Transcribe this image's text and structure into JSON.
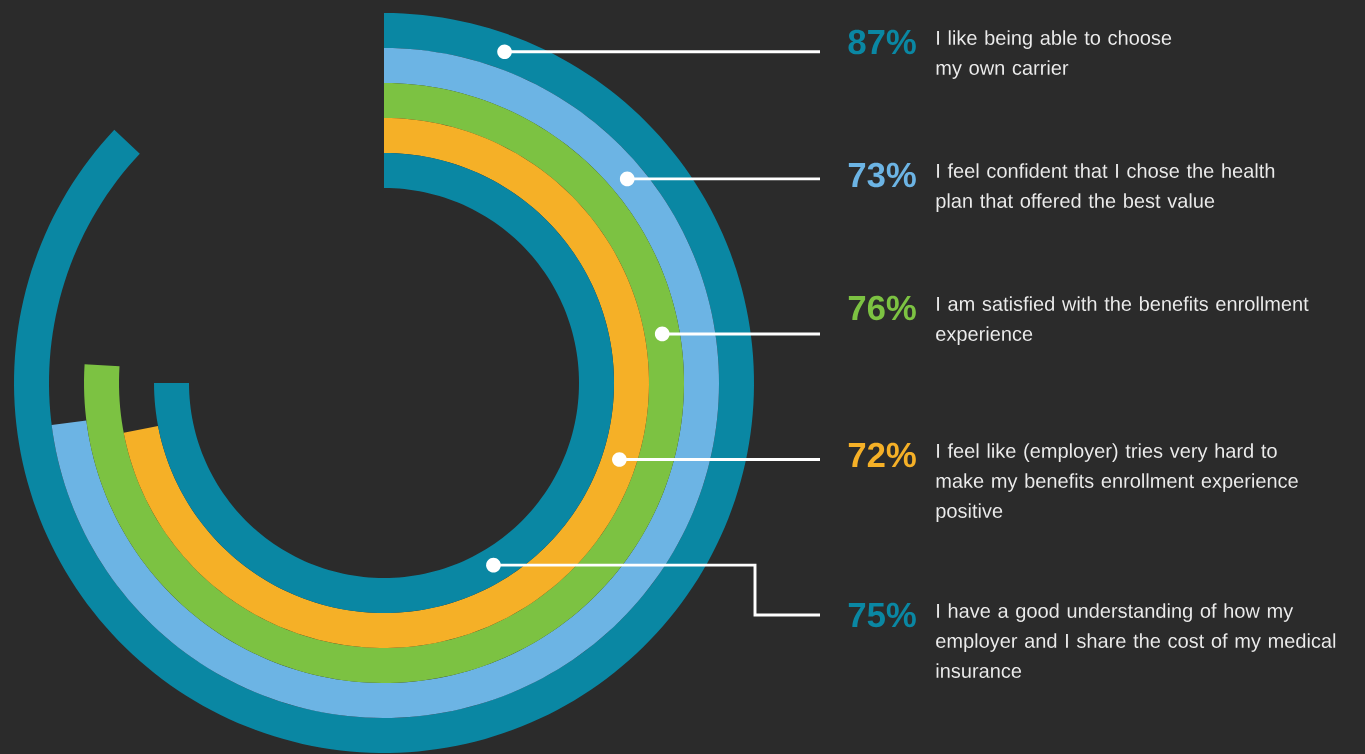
{
  "chart_data": {
    "type": "other",
    "categories": [
      "I like being able to choose my own carrier",
      "I feel confident that I chose the health plan that offered the best value",
      "I am satisfied with the benefits enrollment experience",
      "I feel like (employer) tries very hard to make my benefits enrollment experience positive",
      "I have a good understanding of how my employer and I share the cost of my medical insurance"
    ],
    "values": [
      87,
      73,
      76,
      72,
      75
    ],
    "colors": [
      "#0a87a3",
      "#6cb4e4",
      "#7cc242",
      "#f5b027",
      "#0a87a3"
    ],
    "value_labels": [
      "87%",
      "73%",
      "76%",
      "72%",
      "75%"
    ]
  }
}
